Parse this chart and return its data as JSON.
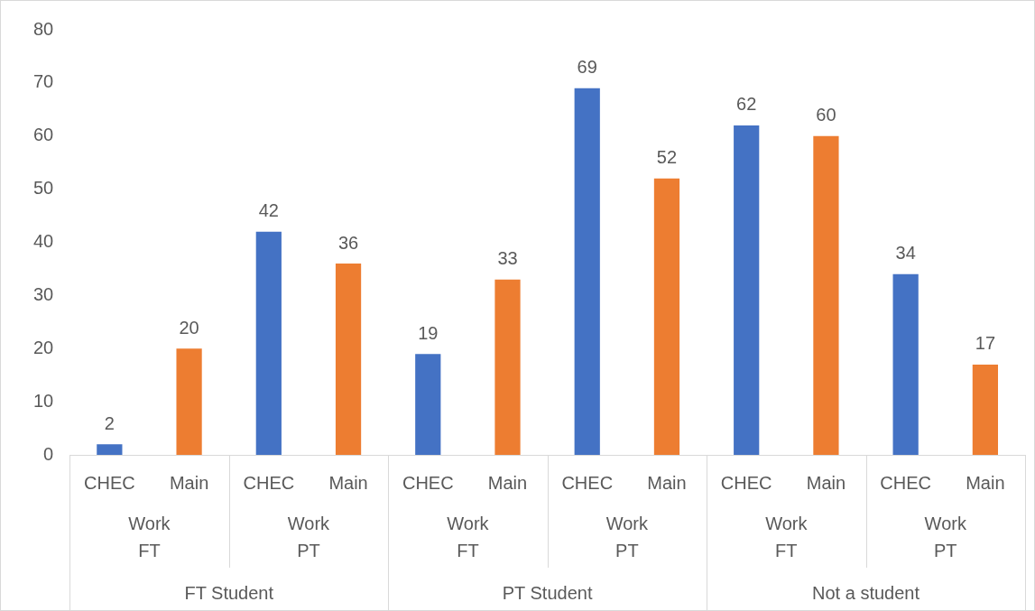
{
  "chart_data": {
    "type": "bar",
    "categories": [
      "Work\nFT",
      "Work\nPT",
      "Work\nFT",
      "Work\nPT",
      "Work\nFT",
      "Work\nPT"
    ],
    "series": [
      {
        "name": "CHEC",
        "color": "#4472c4",
        "values": [
          2,
          42,
          19,
          69,
          62,
          34
        ]
      },
      {
        "name": "Main",
        "color": "#ed7d31",
        "values": [
          20,
          36,
          33,
          52,
          60,
          17
        ]
      }
    ],
    "annotations": [
      "FT Student",
      "PT Student",
      "Not a student"
    ],
    "ylim": [
      0,
      80
    ],
    "yticks": [
      0,
      10,
      20,
      30,
      40,
      50,
      60,
      70,
      80
    ],
    "grid": false,
    "legend": false,
    "data_labels": true
  }
}
